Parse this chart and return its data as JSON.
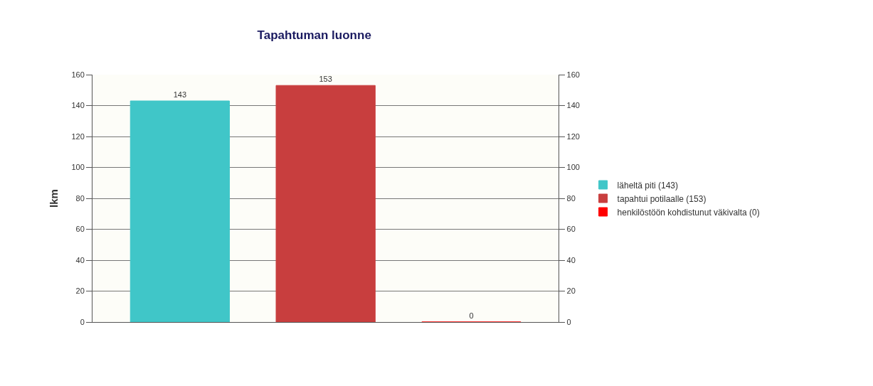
{
  "chart_data": {
    "type": "bar",
    "title": "Tapahtuman luonne",
    "ylabel": "lkm",
    "categories": [
      null,
      null,
      null
    ],
    "series": [
      {
        "name": "läheltä piti (143)",
        "color": "#40c6c8",
        "values": [
          143,
          null,
          null
        ]
      },
      {
        "name": "tapahtui potilaalle (153)",
        "color": "#c83e3e",
        "values": [
          null,
          153,
          null
        ]
      },
      {
        "name": "henkilöstöön kohdistunut väkivalta (0)",
        "color": "#ff0000",
        "values": [
          null,
          null,
          0
        ]
      }
    ],
    "ylim": [
      0,
      160
    ],
    "yticks": [
      0,
      20,
      40,
      60,
      80,
      100,
      120,
      140,
      160
    ],
    "y2lim": [
      0,
      160
    ],
    "y2ticks": [
      0,
      20,
      40,
      60,
      80,
      100,
      120,
      140,
      160
    ],
    "grid": "y",
    "legend": "right",
    "data_labels": true
  }
}
